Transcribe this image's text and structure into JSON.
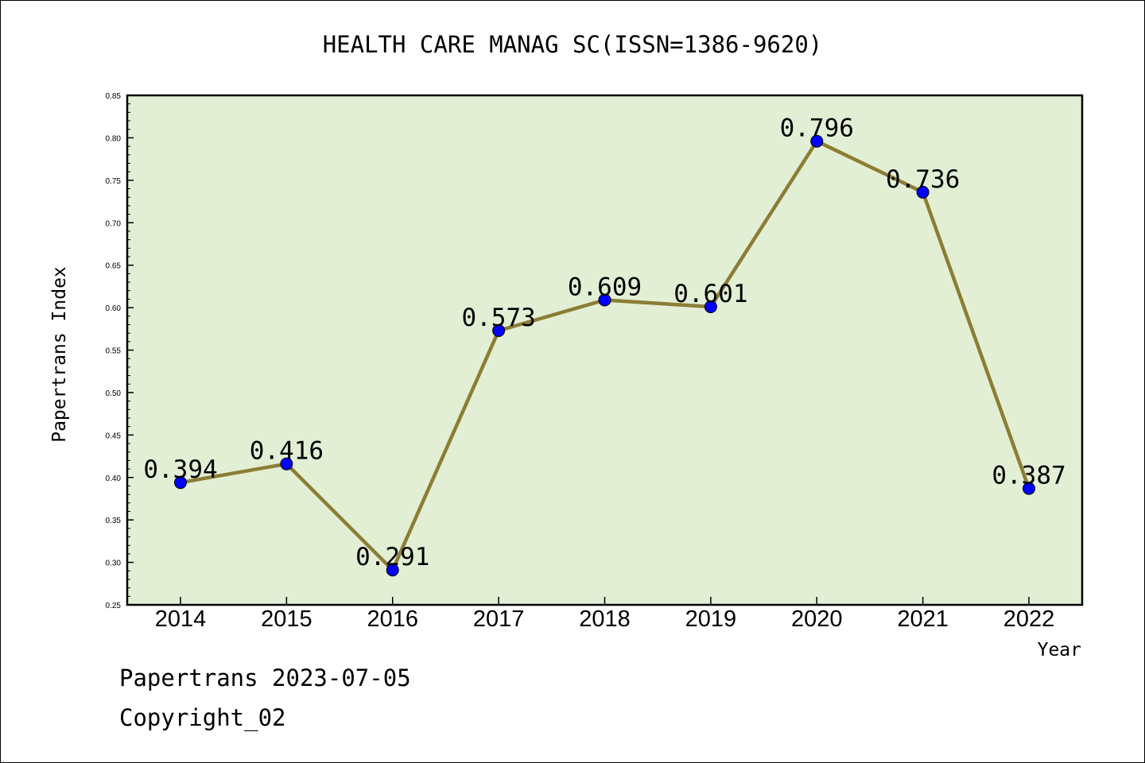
{
  "chart_data": {
    "type": "line",
    "title": "HEALTH CARE MANAG SC(ISSN=1386-9620)",
    "xlabel": "Year",
    "ylabel": "Papertrans Index",
    "categories": [
      "2014",
      "2015",
      "2016",
      "2017",
      "2018",
      "2019",
      "2020",
      "2021",
      "2022"
    ],
    "values": [
      0.394,
      0.416,
      0.291,
      0.573,
      0.609,
      0.601,
      0.796,
      0.736,
      0.387
    ],
    "data_labels": [
      "0.394",
      "0.416",
      "0.291",
      "0.573",
      "0.609",
      "0.601",
      "0.796",
      "0.736",
      "0.387"
    ],
    "ylim": [
      0.25,
      0.85
    ],
    "yticks": [
      "0.25",
      "0.30",
      "0.35",
      "0.40",
      "0.45",
      "0.50",
      "0.55",
      "0.60",
      "0.65",
      "0.70",
      "0.75",
      "0.80",
      "0.85"
    ],
    "grid": false,
    "legend": "none",
    "colors": {
      "plot_background": "#e2efd4",
      "line": "#8b7d35",
      "marker": "#0000ff",
      "axis": "#000000"
    }
  },
  "footer": {
    "date_text": "Papertrans 2023-07-05",
    "copyright": "Copyright_02"
  }
}
